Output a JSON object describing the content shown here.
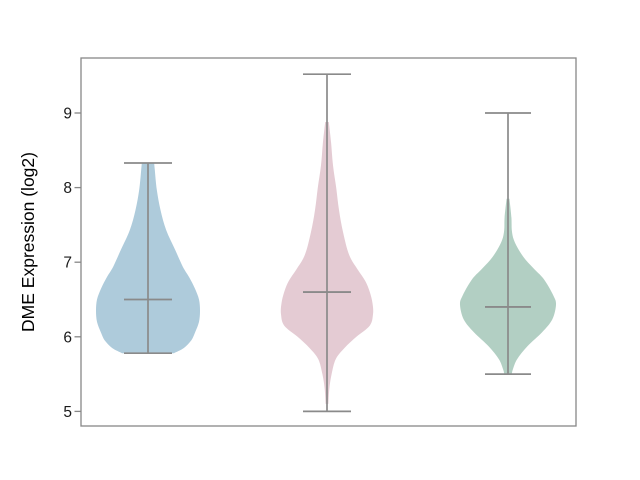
{
  "figure": {
    "background_color": "#ffffff",
    "axis_line_color": "#878787",
    "marker_line_color": "#8a8a8a",
    "tick_label_color": "#1a1a1a",
    "axis_label_color": "#000000"
  },
  "chart_data": {
    "type": "violin",
    "title": "",
    "xlabel": "",
    "ylabel": "DME Expression (log2)",
    "yticks": [
      5,
      6,
      7,
      8,
      9
    ],
    "ylim": [
      4.8,
      9.74
    ],
    "grid": false,
    "x_tick_labels": [],
    "series": [
      {
        "fill_color": "#aecbdb",
        "median": 6.5,
        "whisker_low": 5.78,
        "whisker_high": 8.33,
        "profile": [
          [
            8.33,
            0.12
          ],
          [
            8.24,
            0.13
          ],
          [
            7.97,
            0.17
          ],
          [
            7.7,
            0.24
          ],
          [
            7.43,
            0.35
          ],
          [
            7.17,
            0.52
          ],
          [
            6.94,
            0.67
          ],
          [
            6.8,
            0.79
          ],
          [
            6.65,
            0.9
          ],
          [
            6.5,
            0.98
          ],
          [
            6.35,
            1.0
          ],
          [
            6.2,
            0.98
          ],
          [
            6.05,
            0.9
          ],
          [
            5.95,
            0.83
          ],
          [
            5.85,
            0.69
          ],
          [
            5.78,
            0.5
          ]
        ]
      },
      {
        "fill_color": "#e4cbd3",
        "median": 6.6,
        "whisker_low": 5.0,
        "whisker_high": 9.52,
        "profile": [
          [
            8.88,
            0.04
          ],
          [
            8.6,
            0.09
          ],
          [
            8.3,
            0.13
          ],
          [
            8.0,
            0.2
          ],
          [
            7.7,
            0.26
          ],
          [
            7.4,
            0.35
          ],
          [
            7.1,
            0.48
          ],
          [
            6.9,
            0.67
          ],
          [
            6.75,
            0.83
          ],
          [
            6.6,
            0.93
          ],
          [
            6.45,
            0.99
          ],
          [
            6.3,
            1.0
          ],
          [
            6.15,
            0.93
          ],
          [
            6.0,
            0.64
          ],
          [
            5.85,
            0.38
          ],
          [
            5.7,
            0.19
          ],
          [
            5.5,
            0.1
          ],
          [
            5.3,
            0.05
          ],
          [
            5.1,
            0.03
          ]
        ]
      },
      {
        "fill_color": "#b2cfc3",
        "median": 6.4,
        "whisker_low": 5.5,
        "whisker_high": 9.0,
        "profile": [
          [
            7.85,
            0.03
          ],
          [
            7.6,
            0.07
          ],
          [
            7.43,
            0.08
          ],
          [
            7.3,
            0.12
          ],
          [
            7.16,
            0.23
          ],
          [
            7.03,
            0.37
          ],
          [
            6.9,
            0.56
          ],
          [
            6.77,
            0.75
          ],
          [
            6.56,
            0.94
          ],
          [
            6.43,
            1.0
          ],
          [
            6.23,
            0.92
          ],
          [
            6.06,
            0.71
          ],
          [
            5.87,
            0.4
          ],
          [
            5.7,
            0.19
          ],
          [
            5.56,
            0.1
          ],
          [
            5.5,
            0.08
          ]
        ]
      }
    ]
  }
}
